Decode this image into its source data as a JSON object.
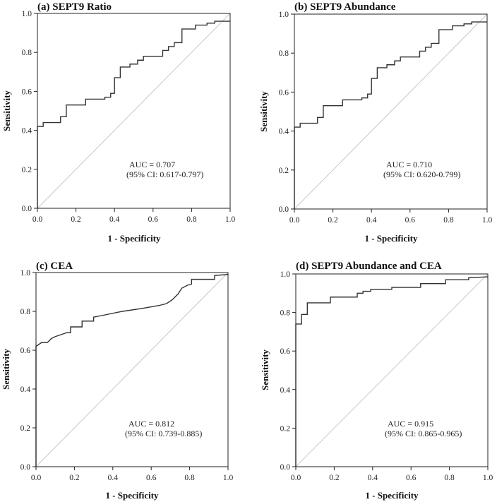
{
  "chart_data": [
    {
      "type": "line",
      "title": "(a) SEPT9 Ratio",
      "xlabel": "1 - Specificity",
      "ylabel": "Sensitivity",
      "xlim": [
        0,
        1
      ],
      "ylim": [
        0,
        1
      ],
      "xticks": [
        "0.0",
        "0.2",
        "0.4",
        "0.6",
        "0.8",
        "1.0"
      ],
      "yticks": [
        "0.0",
        "0.2",
        "0.4",
        "0.6",
        "0.8",
        "1.0"
      ],
      "annotation": [
        "AUC = 0.707",
        "(95% CI: 0.617-0.797)"
      ],
      "reference_line": {
        "name": "chance",
        "x": [
          0,
          1
        ],
        "y": [
          0,
          1
        ]
      },
      "series": [
        {
          "name": "ROC",
          "x": [
            0,
            0,
            0.03,
            0.03,
            0.12,
            0.12,
            0.15,
            0.15,
            0.25,
            0.25,
            0.35,
            0.35,
            0.38,
            0.38,
            0.4,
            0.4,
            0.43,
            0.43,
            0.48,
            0.48,
            0.52,
            0.52,
            0.55,
            0.55,
            0.65,
            0.65,
            0.68,
            0.68,
            0.71,
            0.71,
            0.75,
            0.75,
            0.82,
            0.82,
            0.88,
            0.88,
            0.92,
            0.92,
            1
          ],
          "y": [
            0,
            0.42,
            0.42,
            0.44,
            0.44,
            0.47,
            0.47,
            0.53,
            0.53,
            0.56,
            0.56,
            0.57,
            0.57,
            0.59,
            0.59,
            0.67,
            0.67,
            0.725,
            0.725,
            0.74,
            0.74,
            0.76,
            0.76,
            0.78,
            0.78,
            0.81,
            0.81,
            0.83,
            0.83,
            0.85,
            0.85,
            0.92,
            0.92,
            0.94,
            0.94,
            0.95,
            0.95,
            0.96,
            0.96
          ]
        }
      ]
    },
    {
      "type": "line",
      "title": "(b) SEPT9 Abundance",
      "xlabel": "1 - Specificity",
      "ylabel": "Sensitivity",
      "xlim": [
        0,
        1
      ],
      "ylim": [
        0,
        1
      ],
      "xticks": [
        "0.0",
        "0.2",
        "0.4",
        "0.6",
        "0.8",
        "1.0"
      ],
      "yticks": [
        "0.0",
        "0.2",
        "0.4",
        "0.6",
        "0.8",
        "1.0"
      ],
      "annotation": [
        "AUC = 0.710",
        "(95% CI: 0.620-0.799)"
      ],
      "reference_line": {
        "name": "chance",
        "x": [
          0,
          1
        ],
        "y": [
          0,
          1
        ]
      },
      "series": [
        {
          "name": "ROC",
          "x": [
            0,
            0,
            0.03,
            0.03,
            0.12,
            0.12,
            0.15,
            0.15,
            0.25,
            0.25,
            0.35,
            0.35,
            0.38,
            0.38,
            0.4,
            0.4,
            0.43,
            0.43,
            0.48,
            0.48,
            0.52,
            0.52,
            0.55,
            0.55,
            0.65,
            0.65,
            0.68,
            0.68,
            0.71,
            0.71,
            0.75,
            0.75,
            0.82,
            0.82,
            0.88,
            0.88,
            0.92,
            0.92,
            1
          ],
          "y": [
            0,
            0.42,
            0.42,
            0.44,
            0.44,
            0.47,
            0.47,
            0.53,
            0.53,
            0.56,
            0.56,
            0.57,
            0.57,
            0.59,
            0.59,
            0.67,
            0.67,
            0.725,
            0.725,
            0.74,
            0.74,
            0.76,
            0.76,
            0.78,
            0.78,
            0.81,
            0.81,
            0.83,
            0.83,
            0.85,
            0.85,
            0.92,
            0.92,
            0.94,
            0.94,
            0.95,
            0.95,
            0.96,
            0.96
          ]
        }
      ]
    },
    {
      "type": "line",
      "title": "(c) CEA",
      "xlabel": "1 - Specificity",
      "ylabel": "Sensitivity",
      "xlim": [
        0,
        1
      ],
      "ylim": [
        0,
        1
      ],
      "xticks": [
        "0.0",
        "0.2",
        "0.4",
        "0.6",
        "0.8",
        "1.0"
      ],
      "yticks": [
        "0.0",
        "0.2",
        "0.4",
        "0.6",
        "0.8",
        "1.0"
      ],
      "annotation": [
        "AUC = 0.812",
        "(95% CI: 0.739-0.885)"
      ],
      "reference_line": {
        "name": "chance",
        "x": [
          0,
          1
        ],
        "y": [
          0,
          1
        ]
      },
      "series": [
        {
          "name": "ROC",
          "x": [
            0,
            0,
            0.03,
            0.06,
            0.08,
            0.1,
            0.13,
            0.16,
            0.18,
            0.18,
            0.24,
            0.24,
            0.3,
            0.3,
            0.35,
            0.45,
            0.55,
            0.64,
            0.68,
            0.71,
            0.74,
            0.76,
            0.79,
            0.81,
            0.81,
            0.93,
            0.93,
            1
          ],
          "y": [
            0,
            0.62,
            0.64,
            0.64,
            0.66,
            0.67,
            0.68,
            0.69,
            0.69,
            0.72,
            0.72,
            0.75,
            0.75,
            0.77,
            0.78,
            0.8,
            0.815,
            0.83,
            0.84,
            0.86,
            0.89,
            0.92,
            0.935,
            0.94,
            0.965,
            0.965,
            0.985,
            0.99
          ]
        }
      ]
    },
    {
      "type": "line",
      "title": "(d) SEPT9 Abundance and CEA",
      "xlabel": "1 - Specificity",
      "ylabel": "Sensitivity",
      "xlim": [
        0,
        1
      ],
      "ylim": [
        0,
        1
      ],
      "xticks": [
        "0.0",
        "0.2",
        "0.4",
        "0.6",
        "0.8",
        "1.0"
      ],
      "yticks": [
        "0.0",
        "0.2",
        "0.4",
        "0.6",
        "0.8",
        "1.0"
      ],
      "annotation": [
        "AUC = 0.915",
        "(95% CI: 0.865-0.965)"
      ],
      "reference_line": {
        "name": "chance",
        "x": [
          0,
          1
        ],
        "y": [
          0,
          1
        ]
      },
      "series": [
        {
          "name": "ROC",
          "x": [
            0,
            0,
            0.03,
            0.03,
            0.06,
            0.06,
            0.18,
            0.18,
            0.32,
            0.32,
            0.35,
            0.35,
            0.39,
            0.39,
            0.5,
            0.5,
            0.65,
            0.65,
            0.78,
            0.78,
            0.9,
            0.9,
            1
          ],
          "y": [
            0,
            0.74,
            0.74,
            0.79,
            0.79,
            0.85,
            0.85,
            0.88,
            0.88,
            0.9,
            0.9,
            0.91,
            0.91,
            0.92,
            0.92,
            0.93,
            0.93,
            0.95,
            0.95,
            0.97,
            0.97,
            0.98,
            0.985
          ]
        }
      ]
    }
  ]
}
